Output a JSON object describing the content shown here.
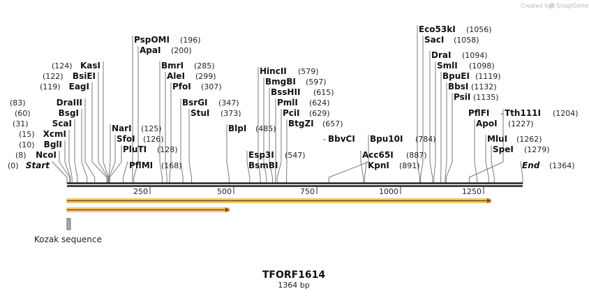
{
  "credit": {
    "created_by": "Created by",
    "brand": "SnapGene"
  },
  "sequence": {
    "name": "TFORF1614",
    "length_label": "1364 bp",
    "length": 1364
  },
  "ruler": {
    "ticks": [
      "250",
      "500",
      "750",
      "1000",
      "1250"
    ]
  },
  "features": {
    "kozak_label": "Kozak sequence"
  },
  "sites": [
    {
      "name": "Start",
      "pos": 0,
      "pos_label": "(0)",
      "italic": true
    },
    {
      "name": "NcoI",
      "pos": 8,
      "pos_label": "(8)"
    },
    {
      "name": "BglI",
      "pos": 10,
      "pos_label": "(10)"
    },
    {
      "name": "XcmI",
      "pos": 15,
      "pos_label": "(15)"
    },
    {
      "name": "ScaI",
      "pos": 31,
      "pos_label": "(31)"
    },
    {
      "name": "BsgI",
      "pos": 60,
      "pos_label": "(60)"
    },
    {
      "name": "DraIII",
      "pos": 83,
      "pos_label": "(83)"
    },
    {
      "name": "EagI",
      "pos": 119,
      "pos_label": "(119)"
    },
    {
      "name": "BsiEI",
      "pos": 122,
      "pos_label": "(122)"
    },
    {
      "name": "KasI",
      "pos": 124,
      "pos_label": "(124)"
    },
    {
      "name": "NarI",
      "pos": 125,
      "pos_label": "(125)"
    },
    {
      "name": "SfoI",
      "pos": 126,
      "pos_label": "(126)"
    },
    {
      "name": "PluTI",
      "pos": 128,
      "pos_label": "(128)"
    },
    {
      "name": "PflMI",
      "pos": 168,
      "pos_label": "(168)"
    },
    {
      "name": "PspOMI",
      "pos": 196,
      "pos_label": "(196)"
    },
    {
      "name": "ApaI",
      "pos": 200,
      "pos_label": "(200)"
    },
    {
      "name": "BmrI",
      "pos": 285,
      "pos_label": "(285)"
    },
    {
      "name": "AleI",
      "pos": 299,
      "pos_label": "(299)"
    },
    {
      "name": "PfoI",
      "pos": 307,
      "pos_label": "(307)"
    },
    {
      "name": "BsrGI",
      "pos": 347,
      "pos_label": "(347)"
    },
    {
      "name": "StuI",
      "pos": 373,
      "pos_label": "(373)"
    },
    {
      "name": "BlpI",
      "pos": 485,
      "pos_label": "(485)"
    },
    {
      "name": "Esp3I",
      "pos": 547,
      "pos_label": "(547)"
    },
    {
      "name": "BsmBI",
      "pos": 547,
      "pos_label": ""
    },
    {
      "name": "HincII",
      "pos": 579,
      "pos_label": "(579)"
    },
    {
      "name": "BmgBI",
      "pos": 597,
      "pos_label": "(597)"
    },
    {
      "name": "BssHII",
      "pos": 615,
      "pos_label": "(615)"
    },
    {
      "name": "PmlI",
      "pos": 624,
      "pos_label": "(624)"
    },
    {
      "name": "PciI",
      "pos": 629,
      "pos_label": "(629)"
    },
    {
      "name": "BtgZI",
      "pos": 657,
      "pos_label": "(657)"
    },
    {
      "name": "BbvCI",
      "pos": 784,
      "pos_label": ""
    },
    {
      "name": "Bpu10I",
      "pos": 784,
      "pos_label": "(784)"
    },
    {
      "name": "Acc65I",
      "pos": 887,
      "pos_label": "(887)"
    },
    {
      "name": "KpnI",
      "pos": 891,
      "pos_label": "(891)"
    },
    {
      "name": "Eco53kI",
      "pos": 1056,
      "pos_label": "(1056)"
    },
    {
      "name": "SacI",
      "pos": 1058,
      "pos_label": "(1058)"
    },
    {
      "name": "DraI",
      "pos": 1094,
      "pos_label": "(1094)"
    },
    {
      "name": "SmlI",
      "pos": 1098,
      "pos_label": "(1098)"
    },
    {
      "name": "BpuEI",
      "pos": 1119,
      "pos_label": "(1119)"
    },
    {
      "name": "BbsI",
      "pos": 1132,
      "pos_label": "(1132)"
    },
    {
      "name": "PsiI",
      "pos": 1135,
      "pos_label": "(1135)"
    },
    {
      "name": "PflFI",
      "pos": 1204,
      "pos_label": ""
    },
    {
      "name": "Tth111I",
      "pos": 1204,
      "pos_label": "(1204)"
    },
    {
      "name": "ApoI",
      "pos": 1227,
      "pos_label": "(1227)"
    },
    {
      "name": "MluI",
      "pos": 1262,
      "pos_label": "(1262)"
    },
    {
      "name": "SpeI",
      "pos": 1279,
      "pos_label": "(1279)"
    },
    {
      "name": "End",
      "pos": 1364,
      "pos_label": "(1364)",
      "italic": true
    }
  ]
}
